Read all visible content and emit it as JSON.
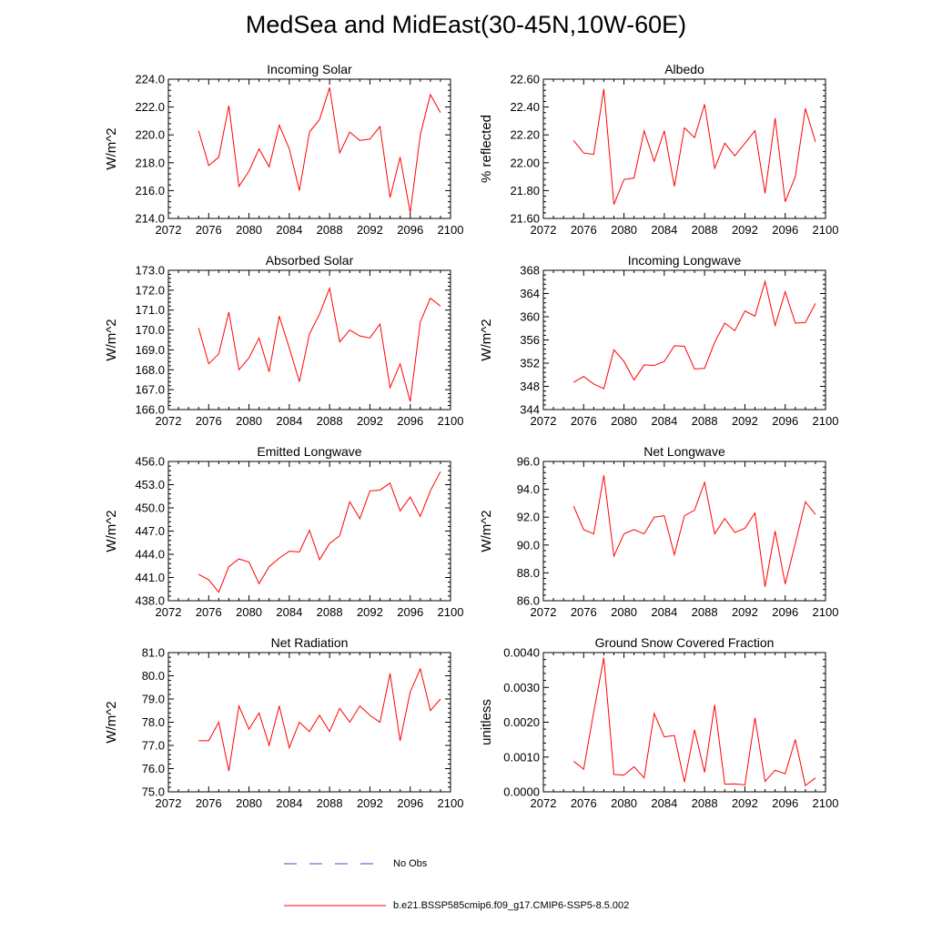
{
  "figure": {
    "title": "MedSea and MidEast(30-45N,10W-60E)"
  },
  "legend": {
    "obs_label": "No Obs",
    "obs_color": "#3a4fd0",
    "model_label": "b.e21.BSSP585cmip6.f09_g17.CMIP6-SSP5-8.5.002",
    "model_color": "#ff0000"
  },
  "chart_data": [
    {
      "type": "line",
      "title": "Incoming Solar",
      "ylabel": "W/m^2",
      "xlim": [
        2072,
        2100
      ],
      "ylim": [
        214,
        224
      ],
      "xticks": [
        2072,
        2076,
        2080,
        2084,
        2088,
        2092,
        2096,
        2100
      ],
      "yticks": [
        214,
        216,
        218,
        220,
        222,
        224
      ],
      "ytick_decimals": 1,
      "x": [
        2075,
        2076,
        2077,
        2078,
        2079,
        2080,
        2081,
        2082,
        2083,
        2084,
        2085,
        2086,
        2087,
        2088,
        2089,
        2090,
        2091,
        2092,
        2093,
        2094,
        2095,
        2096,
        2097,
        2098,
        2099
      ],
      "series": [
        {
          "color": "#ff0000",
          "values": [
            220.3,
            217.8,
            218.4,
            222.1,
            216.3,
            217.4,
            219.0,
            217.7,
            220.7,
            219.0,
            216.0,
            220.2,
            221.1,
            223.4,
            218.7,
            220.2,
            219.6,
            219.7,
            220.6,
            215.5,
            218.4,
            214.4,
            220.0,
            222.9,
            221.6
          ]
        }
      ]
    },
    {
      "type": "line",
      "title": "Albedo",
      "ylabel": "% reflected",
      "xlim": [
        2072,
        2100
      ],
      "ylim": [
        21.6,
        22.6
      ],
      "xticks": [
        2072,
        2076,
        2080,
        2084,
        2088,
        2092,
        2096,
        2100
      ],
      "yticks": [
        21.6,
        21.8,
        22.0,
        22.2,
        22.4,
        22.6
      ],
      "ytick_decimals": 2,
      "x": [
        2075,
        2076,
        2077,
        2078,
        2079,
        2080,
        2081,
        2082,
        2083,
        2084,
        2085,
        2086,
        2087,
        2088,
        2089,
        2090,
        2091,
        2092,
        2093,
        2094,
        2095,
        2096,
        2097,
        2098,
        2099
      ],
      "series": [
        {
          "color": "#ff0000",
          "values": [
            22.16,
            22.07,
            22.06,
            22.53,
            21.7,
            21.88,
            21.89,
            22.23,
            22.01,
            22.23,
            21.83,
            22.25,
            22.18,
            22.42,
            21.96,
            22.14,
            22.05,
            22.14,
            22.23,
            21.78,
            22.32,
            21.72,
            21.9,
            22.39,
            22.15
          ]
        }
      ]
    },
    {
      "type": "line",
      "title": "Absorbed Solar",
      "ylabel": "W/m^2",
      "xlim": [
        2072,
        2100
      ],
      "ylim": [
        166,
        173
      ],
      "xticks": [
        2072,
        2076,
        2080,
        2084,
        2088,
        2092,
        2096,
        2100
      ],
      "yticks": [
        166,
        167,
        168,
        169,
        170,
        171,
        172,
        173
      ],
      "ytick_decimals": 1,
      "x": [
        2075,
        2076,
        2077,
        2078,
        2079,
        2080,
        2081,
        2082,
        2083,
        2084,
        2085,
        2086,
        2087,
        2088,
        2089,
        2090,
        2091,
        2092,
        2093,
        2094,
        2095,
        2096,
        2097,
        2098,
        2099
      ],
      "series": [
        {
          "color": "#ff0000",
          "values": [
            170.1,
            168.3,
            168.8,
            170.9,
            168.0,
            168.6,
            169.6,
            167.9,
            170.7,
            169.1,
            167.4,
            169.8,
            170.8,
            172.1,
            169.4,
            170.0,
            169.7,
            169.6,
            170.3,
            167.1,
            168.3,
            166.4,
            170.4,
            171.6,
            171.2
          ]
        }
      ]
    },
    {
      "type": "line",
      "title": "Incoming Longwave",
      "ylabel": "W/m^2",
      "xlim": [
        2072,
        2100
      ],
      "ylim": [
        344,
        368
      ],
      "xticks": [
        2072,
        2076,
        2080,
        2084,
        2088,
        2092,
        2096,
        2100
      ],
      "yticks": [
        344,
        348,
        352,
        356,
        360,
        364,
        368
      ],
      "ytick_decimals": 0,
      "x": [
        2075,
        2076,
        2077,
        2078,
        2079,
        2080,
        2081,
        2082,
        2083,
        2084,
        2085,
        2086,
        2087,
        2088,
        2089,
        2090,
        2091,
        2092,
        2093,
        2094,
        2095,
        2096,
        2097,
        2098,
        2099
      ],
      "series": [
        {
          "color": "#ff0000",
          "values": [
            348.7,
            349.7,
            348.4,
            347.6,
            354.3,
            352.3,
            349.1,
            351.7,
            351.6,
            352.3,
            355.0,
            354.9,
            351.0,
            351.1,
            355.6,
            358.9,
            357.6,
            361.0,
            360.1,
            366.1,
            358.5,
            364.3,
            358.9,
            359.0,
            362.3
          ]
        }
      ]
    },
    {
      "type": "line",
      "title": "Emitted Longwave",
      "ylabel": "W/m^2",
      "xlim": [
        2072,
        2100
      ],
      "ylim": [
        438,
        456
      ],
      "xticks": [
        2072,
        2076,
        2080,
        2084,
        2088,
        2092,
        2096,
        2100
      ],
      "yticks": [
        438,
        441,
        444,
        447,
        450,
        453,
        456
      ],
      "ytick_decimals": 1,
      "x": [
        2075,
        2076,
        2077,
        2078,
        2079,
        2080,
        2081,
        2082,
        2083,
        2084,
        2085,
        2086,
        2087,
        2088,
        2089,
        2090,
        2091,
        2092,
        2093,
        2094,
        2095,
        2096,
        2097,
        2098,
        2099
      ],
      "series": [
        {
          "color": "#ff0000",
          "values": [
            441.4,
            440.7,
            439.1,
            442.4,
            443.4,
            443.0,
            440.2,
            442.4,
            443.5,
            444.4,
            444.3,
            447.1,
            443.3,
            445.4,
            446.4,
            450.8,
            448.6,
            452.2,
            452.3,
            453.2,
            449.6,
            451.4,
            448.9,
            452.2,
            454.7
          ]
        }
      ]
    },
    {
      "type": "line",
      "title": "Net Longwave",
      "ylabel": "W/m^2",
      "xlim": [
        2072,
        2100
      ],
      "ylim": [
        86,
        96
      ],
      "xticks": [
        2072,
        2076,
        2080,
        2084,
        2088,
        2092,
        2096,
        2100
      ],
      "yticks": [
        86,
        88,
        90,
        92,
        94,
        96
      ],
      "ytick_decimals": 1,
      "x": [
        2075,
        2076,
        2077,
        2078,
        2079,
        2080,
        2081,
        2082,
        2083,
        2084,
        2085,
        2086,
        2087,
        2088,
        2089,
        2090,
        2091,
        2092,
        2093,
        2094,
        2095,
        2096,
        2097,
        2098,
        2099
      ],
      "series": [
        {
          "color": "#ff0000",
          "values": [
            92.8,
            91.1,
            90.8,
            95.0,
            89.2,
            90.8,
            91.1,
            90.8,
            92.0,
            92.1,
            89.3,
            92.1,
            92.5,
            94.5,
            90.8,
            91.9,
            90.9,
            91.2,
            92.3,
            87.0,
            91.0,
            87.2,
            90.1,
            93.1,
            92.2
          ]
        }
      ]
    },
    {
      "type": "line",
      "title": "Net Radiation",
      "ylabel": "W/m^2",
      "xlim": [
        2072,
        2100
      ],
      "ylim": [
        75,
        81
      ],
      "xticks": [
        2072,
        2076,
        2080,
        2084,
        2088,
        2092,
        2096,
        2100
      ],
      "yticks": [
        75,
        76,
        77,
        78,
        79,
        80,
        81
      ],
      "ytick_decimals": 1,
      "x": [
        2075,
        2076,
        2077,
        2078,
        2079,
        2080,
        2081,
        2082,
        2083,
        2084,
        2085,
        2086,
        2087,
        2088,
        2089,
        2090,
        2091,
        2092,
        2093,
        2094,
        2095,
        2096,
        2097,
        2098,
        2099
      ],
      "series": [
        {
          "color": "#ff0000",
          "values": [
            77.2,
            77.2,
            78.0,
            75.9,
            78.7,
            77.7,
            78.4,
            77.0,
            78.7,
            76.9,
            78.0,
            77.6,
            78.3,
            77.6,
            78.6,
            78.0,
            78.7,
            78.3,
            78.0,
            80.1,
            77.2,
            79.3,
            80.3,
            78.5,
            79.0
          ]
        }
      ]
    },
    {
      "type": "line",
      "title": "Ground Snow Covered Fraction",
      "ylabel": "unitless",
      "xlim": [
        2072,
        2100
      ],
      "ylim": [
        0,
        0.004
      ],
      "xticks": [
        2072,
        2076,
        2080,
        2084,
        2088,
        2092,
        2096,
        2100
      ],
      "yticks": [
        0,
        0.001,
        0.002,
        0.003,
        0.004
      ],
      "ytick_decimals": 4,
      "x": [
        2075,
        2076,
        2077,
        2078,
        2079,
        2080,
        2081,
        2082,
        2083,
        2084,
        2085,
        2086,
        2087,
        2088,
        2089,
        2090,
        2091,
        2092,
        2093,
        2094,
        2095,
        2096,
        2097,
        2098,
        2099
      ],
      "series": [
        {
          "color": "#ff0000",
          "values": [
            0.00088,
            0.00065,
            0.0023,
            0.00385,
            0.0005,
            0.00048,
            0.00072,
            0.0004,
            0.00225,
            0.00158,
            0.00162,
            0.00028,
            0.00178,
            0.00056,
            0.0025,
            0.00022,
            0.00023,
            0.0002,
            0.00213,
            0.0003,
            0.00062,
            0.00052,
            0.0015,
            0.00018,
            0.0004
          ]
        }
      ]
    }
  ]
}
